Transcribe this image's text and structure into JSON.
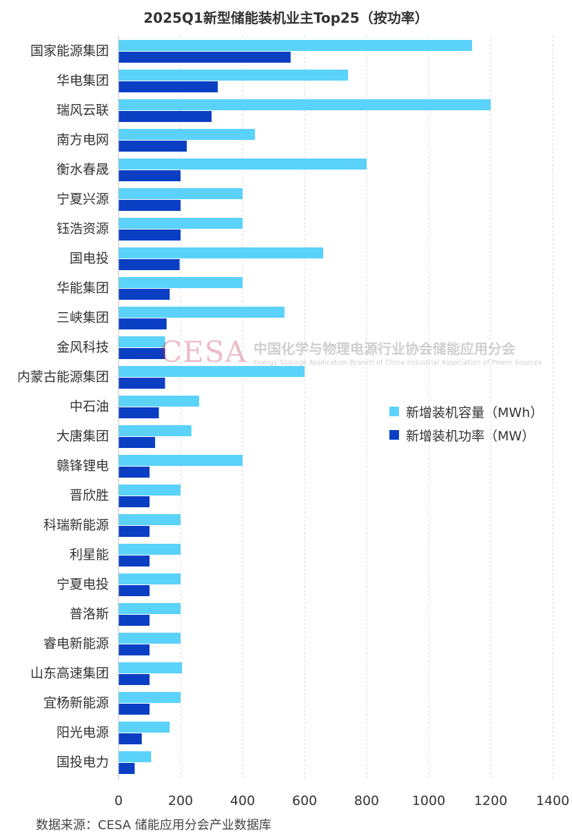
{
  "chart_data": {
    "type": "bar",
    "orientation": "horizontal",
    "title": "2025Q1新型储能装机业主Top25（按功率）",
    "categories": [
      "国家能源集团",
      "华电集团",
      "瑞风云联",
      "南方电网",
      "衡水春晟",
      "宁夏兴源",
      "钰浩资源",
      "国电投",
      "华能集团",
      "三峡集团",
      "金风科技",
      "内蒙古能源集团",
      "中石油",
      "大唐集团",
      "赣锋锂电",
      "晋欣胜",
      "科瑞新能源",
      "利星能",
      "宁夏电投",
      "普洛斯",
      "睿电新能源",
      "山东高速集团",
      "宜杨新能源",
      "阳光电源",
      "国投电力"
    ],
    "series": [
      {
        "name": "新增装机容量（MWh）",
        "color": "#5bd2fa",
        "values": [
          1140,
          740,
          1200,
          440,
          800,
          400,
          400,
          660,
          400,
          535,
          150,
          600,
          260,
          235,
          400,
          200,
          200,
          200,
          200,
          200,
          200,
          205,
          200,
          165,
          105
        ]
      },
      {
        "name": "新增装机功率（MW）",
        "color": "#0a3fc4",
        "values": [
          555,
          320,
          300,
          220,
          200,
          200,
          200,
          197,
          165,
          155,
          150,
          150,
          130,
          118,
          100,
          100,
          100,
          100,
          100,
          100,
          100,
          100,
          100,
          75,
          52
        ]
      }
    ],
    "xlim": [
      0,
      1400
    ],
    "xticks": [
      0,
      200,
      400,
      600,
      800,
      1000,
      1200,
      1400
    ],
    "grid": "vertical dashed",
    "legend_position": "right-middle"
  },
  "source_note": "数据来源：CESA 储能应用分会产业数据库",
  "watermark": {
    "logo": "CESA",
    "cn": "中国化学与物理电源行业协会储能应用分会",
    "en": "Energy Storage Application Branch of China Industrial Association of Power Sources"
  }
}
